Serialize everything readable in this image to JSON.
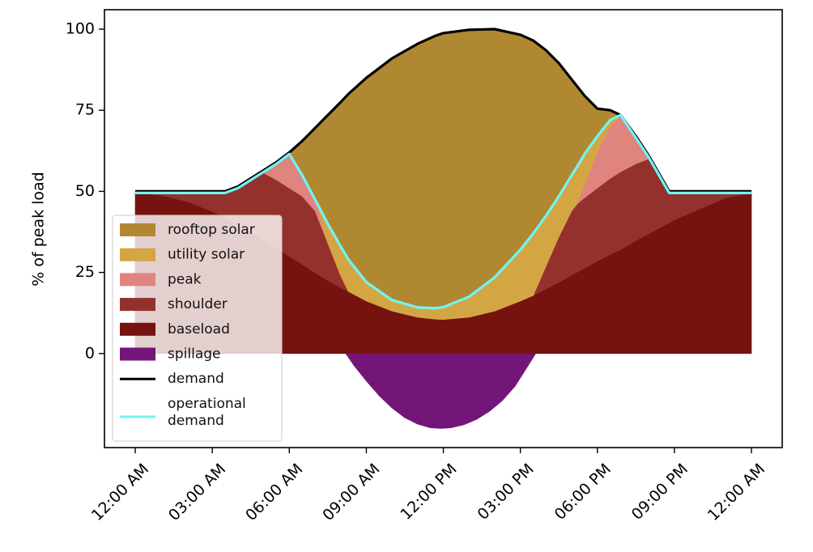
{
  "chart_data": {
    "type": "area",
    "title": "",
    "xlabel": "",
    "ylabel": "% of peak load",
    "xlim": [
      -1.2,
      25.2
    ],
    "ylim": [
      -29,
      106
    ],
    "grid": false,
    "legend_placement": "lower-left",
    "x_ticks": [
      0,
      3,
      6,
      9,
      12,
      15,
      18,
      21,
      24
    ],
    "x_tick_labels": [
      "12:00 AM",
      "03:00 AM",
      "06:00 AM",
      "09:00 AM",
      "12:00 PM",
      "03:00 PM",
      "06:00 PM",
      "09:00 PM",
      "12:00 AM"
    ],
    "y_ticks": [
      0,
      25,
      50,
      75,
      100
    ],
    "y_tick_labels": [
      "0",
      "25",
      "50",
      "75",
      "100"
    ],
    "hours": [
      0,
      1,
      2,
      3,
      3.5,
      4,
      4.5,
      5,
      5.5,
      6,
      6.5,
      7,
      7.5,
      8,
      8.3,
      9,
      10,
      11,
      11.7,
      12,
      13,
      14,
      15,
      15.5,
      16,
      16.5,
      17,
      17.2,
      17.5,
      18,
      18.5,
      18.9,
      19.5,
      20,
      20.4,
      20.8,
      21,
      22,
      23,
      24
    ],
    "series": [
      {
        "name": "demand",
        "kind": "line",
        "color": "#000000",
        "values": [
          50,
          50,
          50,
          50,
          50,
          51.5,
          54,
          56.5,
          59,
          62,
          65.5,
          69.5,
          73.5,
          77.5,
          80,
          85,
          91,
          95.5,
          98,
          98.8,
          99.8,
          100,
          98.3,
          96.5,
          93.5,
          89.5,
          84.5,
          82.5,
          79.5,
          75.5,
          75,
          73.5,
          67,
          61,
          55.5,
          50,
          50,
          50,
          50,
          50
        ]
      },
      {
        "name": "operational demand",
        "kind": "line",
        "color": "#6ff5f5",
        "values": [
          49.5,
          49.5,
          49.5,
          49.5,
          49.5,
          51,
          53.5,
          56,
          58.5,
          61.5,
          55,
          47.5,
          40,
          33,
          29,
          22,
          16.5,
          14.2,
          14,
          14.3,
          17.5,
          23.5,
          32,
          37,
          42.5,
          48.5,
          55,
          57.5,
          61.5,
          67,
          72,
          73.5,
          66.5,
          60.5,
          55,
          49.5,
          49.5,
          49.5,
          49.5,
          49.5
        ]
      },
      {
        "name": "baseload",
        "kind": "area",
        "color": "#76130e",
        "values": [
          49.5,
          48.8,
          46.9,
          43.8,
          41.8,
          39.8,
          37.5,
          35.0,
          32.6,
          30.0,
          27.5,
          24.9,
          22.5,
          20.3,
          19.1,
          16.2,
          13.1,
          11.2,
          10.6,
          10.5,
          11.2,
          13.1,
          16.2,
          17.9,
          19.9,
          21.9,
          24.2,
          25.0,
          26.3,
          28.5,
          30.6,
          32.0,
          34.8,
          36.9,
          38.6,
          40.3,
          41.2,
          44.6,
          48.0,
          49.5
        ]
      },
      {
        "name": "shoulder",
        "kind": "area",
        "color": "#95312d",
        "values": [
          49.5,
          49.5,
          49.5,
          49.5,
          49.5,
          51,
          53.5,
          55.7,
          53.5,
          51,
          48.5,
          44,
          34,
          24,
          19.1,
          16.2,
          13.1,
          11.2,
          10.6,
          10.5,
          11.2,
          13.1,
          16.2,
          17.9,
          27,
          36,
          44,
          46,
          48,
          51,
          54,
          56,
          58.5,
          60,
          55,
          49.5,
          49.5,
          49.5,
          49.5,
          49.5
        ]
      },
      {
        "name": "peak",
        "kind": "area",
        "color": "#e08480",
        "values": [
          49.5,
          49.5,
          49.5,
          49.5,
          49.5,
          51,
          53.5,
          56,
          58.5,
          61.5,
          56,
          48,
          34,
          24,
          19.1,
          16.2,
          13.1,
          11.2,
          10.6,
          10.5,
          11.2,
          13.1,
          16.2,
          17.9,
          27,
          36,
          44,
          46,
          52,
          62,
          70,
          73.5,
          66.5,
          60.5,
          55,
          49.5,
          49.5,
          49.5,
          49.5,
          49.5
        ]
      },
      {
        "name": "utility solar",
        "kind": "area",
        "color": "#d4a643",
        "values": [
          49.5,
          49.5,
          49.5,
          49.5,
          49.5,
          51,
          53.5,
          56,
          58.5,
          61.5,
          55,
          47.5,
          40,
          33,
          29,
          22,
          16.5,
          14.2,
          14,
          14.3,
          17.5,
          23.5,
          32,
          37,
          42.5,
          48.5,
          55,
          57.5,
          61.5,
          67,
          72,
          73.5,
          66.5,
          60.5,
          55,
          49.5,
          49.5,
          49.5,
          49.5,
          49.5
        ]
      },
      {
        "name": "rooftop solar",
        "kind": "area",
        "color": "#b08832",
        "values": [
          50,
          50,
          50,
          50,
          50,
          51.5,
          54,
          56.5,
          59,
          62,
          65.5,
          69.5,
          73.5,
          77.5,
          80,
          85,
          91,
          95.5,
          98,
          98.8,
          99.8,
          100,
          98.3,
          96.5,
          93.5,
          89.5,
          84.5,
          82.5,
          79.5,
          75.5,
          75,
          73.5,
          67,
          61,
          55.5,
          50,
          50,
          50,
          50,
          50
        ]
      },
      {
        "name": "spillage",
        "kind": "area",
        "color": "#741579",
        "hours": [
          8.2,
          8.5,
          9,
          9.5,
          10,
          10.5,
          11,
          11.5,
          11.9,
          12.3,
          12.8,
          13.3,
          13.8,
          14.3,
          14.8,
          15.2,
          15.6
        ],
        "values": [
          0,
          -3.5,
          -8.5,
          -13,
          -16.8,
          -19.8,
          -21.8,
          -22.9,
          -23.1,
          -22.9,
          -22,
          -20.3,
          -17.8,
          -14.5,
          -10,
          -5,
          0
        ]
      }
    ],
    "legend": [
      {
        "label": "rooftop solar",
        "kind": "patch",
        "color": "#b08832"
      },
      {
        "label": "utility solar",
        "kind": "patch",
        "color": "#d4a643"
      },
      {
        "label": "peak",
        "kind": "patch",
        "color": "#e08480"
      },
      {
        "label": "shoulder",
        "kind": "patch",
        "color": "#95312d"
      },
      {
        "label": "baseload",
        "kind": "patch",
        "color": "#76130e"
      },
      {
        "label": "spillage",
        "kind": "patch",
        "color": "#741579"
      },
      {
        "label": "demand",
        "kind": "line",
        "color": "#000000"
      },
      {
        "label": "operational\ndemand",
        "kind": "line",
        "color": "#6ff5f5"
      }
    ]
  }
}
